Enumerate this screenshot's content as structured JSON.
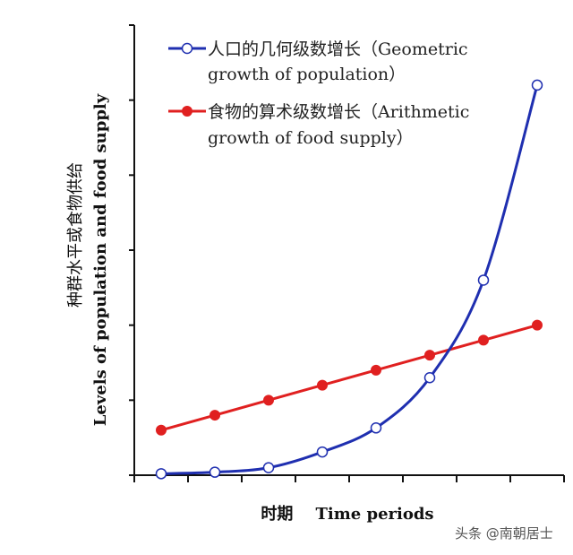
{
  "chart_data": {
    "type": "line",
    "x": [
      1,
      2,
      3,
      4,
      5,
      6,
      7,
      8
    ],
    "xlim": [
      0.5,
      8.5
    ],
    "ylim": [
      0,
      6
    ],
    "xlabel": "时期    Time periods",
    "ylabel_cn": "种群水平或食物供给",
    "ylabel_en": "Levels of population and food supply",
    "grid": false,
    "legend_position": "top-left",
    "series": [
      {
        "name_line1": "人口的几何级数增长（Geometric",
        "name_line2": "growth of population）",
        "color": "#1f2fb0",
        "marker": "open-circle",
        "values": [
          0.02,
          0.04,
          0.1,
          0.31,
          0.63,
          1.3,
          2.6,
          5.2
        ]
      },
      {
        "name_line1": "食物的算术级数增长（Arithmetic",
        "name_line2": "growth of food supply）",
        "color": "#e02020",
        "marker": "filled-circle",
        "values": [
          0.6,
          0.8,
          1.0,
          1.2,
          1.4,
          1.6,
          1.8,
          2.0
        ]
      }
    ]
  },
  "watermark": "头条 @南朝居士"
}
